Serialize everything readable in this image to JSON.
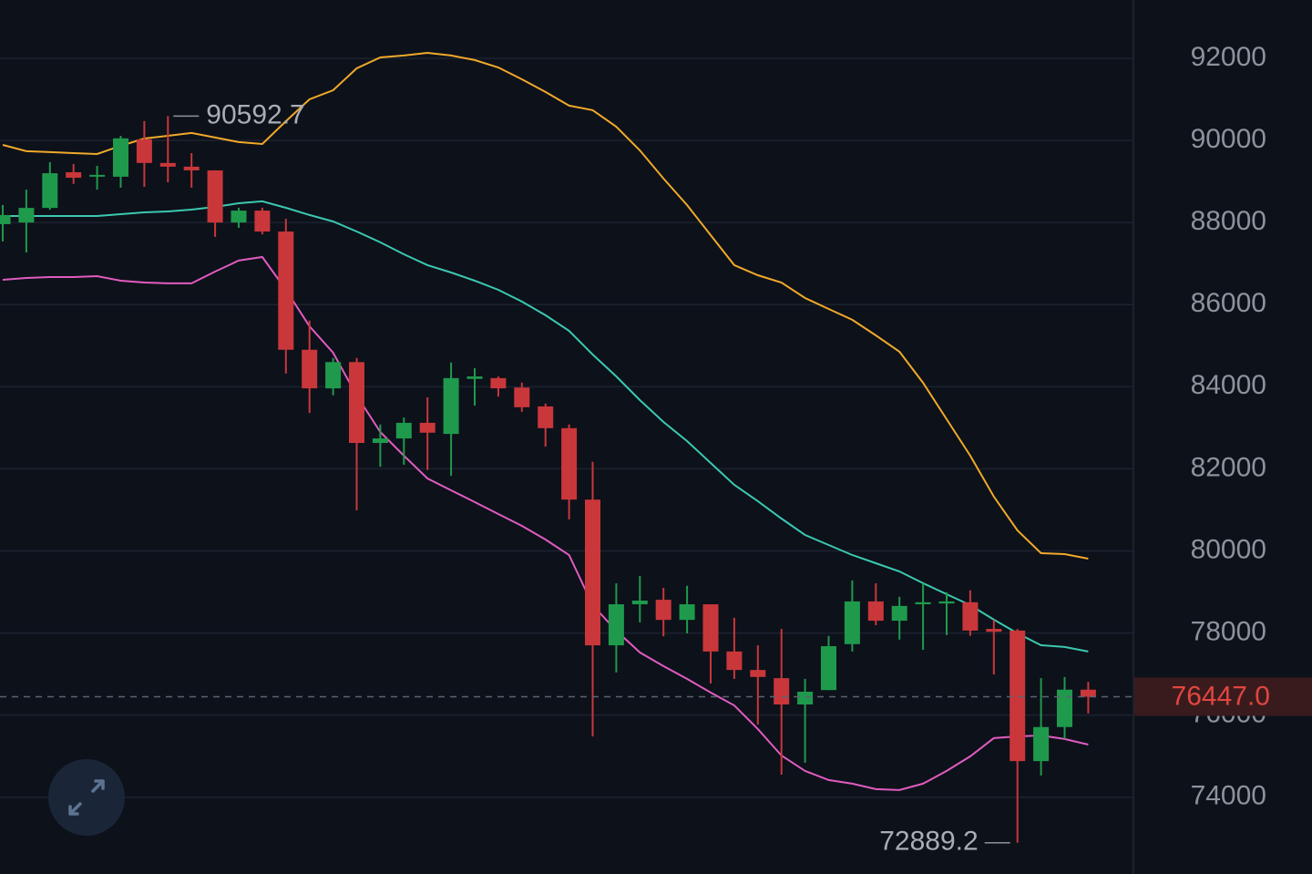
{
  "chart_data": {
    "type": "candlestick",
    "categories": [
      null,
      null,
      null,
      null,
      null,
      null,
      null,
      null,
      null,
      null,
      null,
      null,
      null,
      null,
      null,
      null,
      null,
      null,
      null,
      null,
      null,
      null,
      null,
      null,
      null,
      null,
      null,
      null,
      null,
      null,
      null,
      null,
      null,
      null,
      null,
      null,
      null,
      null,
      null,
      null,
      null,
      null,
      null,
      null,
      null,
      null,
      null
    ],
    "open": [
      87960,
      88000,
      88355,
      89225,
      89130,
      89115,
      90025,
      89450,
      89360,
      89270,
      88000,
      88290,
      87780,
      84900,
      83960,
      84600,
      82630,
      82740,
      83120,
      82850,
      84190,
      84210,
      83980,
      83520,
      82990,
      81250,
      77700,
      78700,
      78810,
      78320,
      78700,
      77550,
      77100,
      76900,
      76260,
      76610,
      77730,
      78770,
      78300,
      78700,
      78720,
      78750,
      78100,
      78060,
      74880,
      75710,
      76620
    ],
    "high": [
      88426,
      88800,
      89470,
      89425,
      89380,
      90110,
      90470,
      90592.7,
      89690,
      89270,
      88360,
      88360,
      88090,
      85610,
      84700,
      84700,
      83080,
      83250,
      83740,
      84590,
      84450,
      84250,
      84100,
      83590,
      83080,
      82170,
      79210,
      79390,
      79100,
      79150,
      78700,
      78370,
      77700,
      78100,
      76880,
      77930,
      79280,
      79210,
      78880,
      79210,
      78990,
      79040,
      78320,
      78100,
      76900,
      76930,
      76810
    ],
    "low": [
      87540,
      87270,
      88310,
      88940,
      88800,
      88850,
      88870,
      88980,
      88850,
      87650,
      87870,
      87710,
      84320,
      83360,
      83790,
      80990,
      82050,
      82100,
      81970,
      81830,
      83540,
      83760,
      83390,
      82540,
      80770,
      75480,
      77040,
      78260,
      77920,
      77990,
      76770,
      76880,
      75770,
      74550,
      74840,
      76610,
      77550,
      78190,
      77840,
      77590,
      77950,
      77930,
      76990,
      72889.2,
      74530,
      75420,
      76040
    ],
    "close": [
      88182,
      88355,
      89200,
      89090,
      89160,
      90050,
      89450,
      89360,
      89270,
      88000,
      88290,
      87780,
      84900,
      83960,
      84600,
      82630,
      82740,
      83120,
      82880,
      84210,
      84250,
      83960,
      83500,
      82990,
      81250,
      77700,
      78700,
      78790,
      78320,
      78700,
      77550,
      77100,
      76930,
      76260,
      76570,
      77680,
      78770,
      78300,
      78660,
      78750,
      78770,
      78060,
      78030,
      74880,
      75710,
      76620,
      76447
    ],
    "up_color": "#1f9a4c",
    "down_color": "#c9373a",
    "series": [
      {
        "color": "#f0a92a",
        "values": [
          89891,
          89736,
          89714,
          89691,
          89669,
          89869,
          90046,
          90113,
          90180,
          90069,
          89958,
          89913,
          90468,
          91001,
          91223,
          91756,
          92022,
          92067,
          92133,
          92067,
          91956,
          91778,
          91489,
          91179,
          90846,
          90735,
          90335,
          89758,
          89070,
          88426,
          87693,
          86961,
          86716,
          86539,
          86161,
          85895,
          85629,
          85251,
          84852,
          84097,
          83209,
          82321,
          81322,
          80500,
          79945,
          79923,
          79812
        ]
      },
      {
        "color": "#3cc8b0",
        "values": [
          88159,
          88159,
          88159,
          88159,
          88159,
          88204,
          88248,
          88270,
          88315,
          88381,
          88470,
          88515,
          88359,
          88182,
          88026,
          87782,
          87516,
          87227,
          86961,
          86783,
          86583,
          86361,
          86073,
          85740,
          85362,
          84785,
          84252,
          83675,
          83142,
          82676,
          82143,
          81610,
          81211,
          80789,
          80389,
          80145,
          79901,
          79701,
          79501,
          79213,
          78946,
          78680,
          78325,
          77992,
          77703,
          77659,
          77548
        ]
      },
      {
        "color": "#e05cc0",
        "values": [
          86605,
          86650,
          86672,
          86672,
          86694,
          86583,
          86539,
          86517,
          86517,
          86805,
          87072,
          87160,
          86361,
          85473,
          84829,
          83786,
          82898,
          82321,
          81766,
          81477,
          81189,
          80900,
          80611,
          80278,
          79901,
          78680,
          78058,
          77526,
          77193,
          76882,
          76549,
          76238,
          75661,
          75017,
          74640,
          74418,
          74329,
          74196,
          74174,
          74329,
          74640,
          74995,
          75439,
          75483,
          75505,
          75417,
          75283
        ]
      }
    ],
    "ylim": [
      72130,
      93420
    ],
    "yticks": [
      74000,
      76000,
      78000,
      80000,
      82000,
      84000,
      86000,
      88000,
      90000,
      92000
    ],
    "grid": true,
    "high_label": 90592.7,
    "low_label": 72889.2,
    "last_price": {
      "value": 76447,
      "label": "76447.0"
    }
  }
}
